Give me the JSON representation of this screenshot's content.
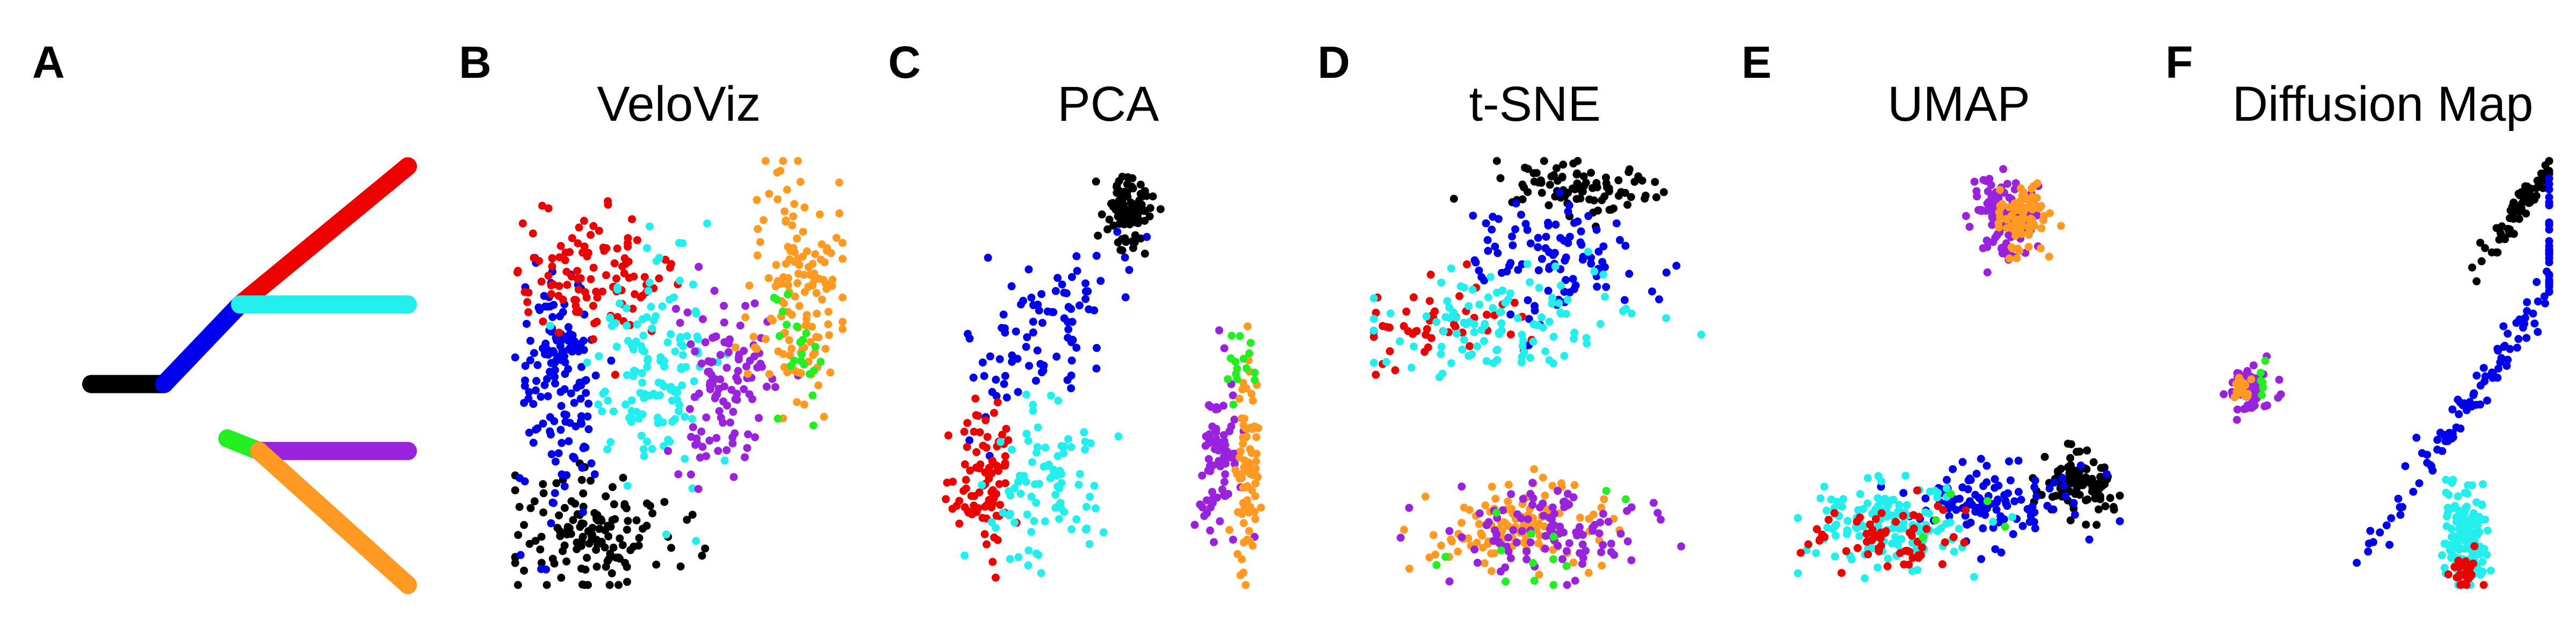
{
  "colors": {
    "black": "#000000",
    "blue": "#0000ee",
    "red": "#ee0000",
    "cyan": "#22eeee",
    "green": "#22ee22",
    "purple": "#9922dd",
    "orange": "#ff9922"
  },
  "chart_data": [
    {
      "type": "diagram",
      "letter": "A",
      "title": "",
      "segments": [
        {
          "color": "black",
          "from": [
            0,
            0.48
          ],
          "to": [
            0.23,
            0.48
          ]
        },
        {
          "color": "blue",
          "from": [
            0.23,
            0.48
          ],
          "to": [
            0.47,
            0.67
          ]
        },
        {
          "color": "red",
          "from": [
            0.47,
            0.67
          ],
          "to": [
            1.0,
            1.0
          ]
        },
        {
          "color": "cyan",
          "from": [
            0.47,
            0.67
          ],
          "to": [
            1.0,
            0.67
          ]
        },
        {
          "color": "green",
          "from": [
            0.43,
            0.35
          ],
          "to": [
            0.53,
            0.32
          ]
        },
        {
          "color": "purple",
          "from": [
            0.53,
            0.32
          ],
          "to": [
            1.0,
            0.32
          ]
        },
        {
          "color": "orange",
          "from": [
            0.53,
            0.32
          ],
          "to": [
            1.0,
            0.0
          ]
        }
      ]
    },
    {
      "type": "scatter",
      "letter": "B",
      "title": "VeloViz",
      "clusters": [
        {
          "color": "black",
          "cx": 0.24,
          "cy": 0.13,
          "sx": 0.12,
          "sy": 0.07,
          "n": 140
        },
        {
          "color": "blue",
          "cx": 0.13,
          "cy": 0.47,
          "sx": 0.06,
          "sy": 0.14,
          "n": 150
        },
        {
          "color": "red",
          "cx": 0.22,
          "cy": 0.73,
          "sx": 0.12,
          "sy": 0.07,
          "n": 110
        },
        {
          "color": "cyan",
          "cx": 0.42,
          "cy": 0.52,
          "sx": 0.09,
          "sy": 0.13,
          "n": 140
        },
        {
          "color": "purple",
          "cx": 0.64,
          "cy": 0.5,
          "sx": 0.07,
          "sy": 0.12,
          "n": 110
        },
        {
          "color": "orange",
          "cx": 0.86,
          "cy": 0.68,
          "sx": 0.07,
          "sy": 0.15,
          "n": 140
        },
        {
          "color": "green",
          "cx": 0.86,
          "cy": 0.53,
          "sx": 0.05,
          "sy": 0.09,
          "n": 22
        }
      ]
    },
    {
      "type": "scatter",
      "letter": "C",
      "title": "PCA",
      "clusters": [
        {
          "color": "black",
          "cx": 0.57,
          "cy": 0.88,
          "sx": 0.035,
          "sy": 0.05,
          "n": 90
        },
        {
          "color": "blue",
          "cx": 0.34,
          "cy": 0.62,
          "sx": 0.1,
          "sy": 0.1,
          "n": 90,
          "trend": "diag"
        },
        {
          "color": "red",
          "cx": 0.12,
          "cy": 0.25,
          "sx": 0.05,
          "sy": 0.08,
          "n": 90
        },
        {
          "color": "cyan",
          "cx": 0.3,
          "cy": 0.25,
          "sx": 0.09,
          "sy": 0.09,
          "n": 90
        },
        {
          "color": "purple",
          "cx": 0.86,
          "cy": 0.3,
          "sx": 0.04,
          "sy": 0.09,
          "n": 80
        },
        {
          "color": "orange",
          "cx": 0.94,
          "cy": 0.28,
          "sx": 0.02,
          "sy": 0.11,
          "n": 80
        },
        {
          "color": "green",
          "cx": 0.91,
          "cy": 0.52,
          "sx": 0.02,
          "sy": 0.05,
          "n": 15
        }
      ]
    },
    {
      "type": "scatter",
      "letter": "D",
      "title": "t-SNE",
      "clusters": [
        {
          "color": "black",
          "cx": 0.6,
          "cy": 0.94,
          "sx": 0.12,
          "sy": 0.03,
          "n": 90
        },
        {
          "color": "blue",
          "cx": 0.55,
          "cy": 0.76,
          "sx": 0.14,
          "sy": 0.07,
          "n": 100
        },
        {
          "color": "red",
          "cx": 0.22,
          "cy": 0.61,
          "sx": 0.12,
          "sy": 0.05,
          "n": 50
        },
        {
          "color": "cyan",
          "cx": 0.4,
          "cy": 0.62,
          "sx": 0.2,
          "sy": 0.05,
          "n": 110
        },
        {
          "color": "orange",
          "cx": 0.42,
          "cy": 0.13,
          "sx": 0.16,
          "sy": 0.05,
          "n": 110
        },
        {
          "color": "purple",
          "cx": 0.55,
          "cy": 0.13,
          "sx": 0.16,
          "sy": 0.05,
          "n": 110
        },
        {
          "color": "green",
          "cx": 0.45,
          "cy": 0.1,
          "sx": 0.16,
          "sy": 0.05,
          "n": 14
        }
      ]
    },
    {
      "type": "scatter",
      "letter": "E",
      "title": "UMAP",
      "clusters": [
        {
          "color": "purple",
          "cx": 0.64,
          "cy": 0.87,
          "sx": 0.05,
          "sy": 0.05,
          "n": 110
        },
        {
          "color": "orange",
          "cx": 0.7,
          "cy": 0.87,
          "sx": 0.05,
          "sy": 0.04,
          "n": 80
        },
        {
          "color": "black",
          "cx": 0.88,
          "cy": 0.24,
          "sx": 0.06,
          "sy": 0.04,
          "n": 90
        },
        {
          "color": "blue",
          "cx": 0.6,
          "cy": 0.2,
          "sx": 0.14,
          "sy": 0.05,
          "n": 110
        },
        {
          "color": "cyan",
          "cx": 0.28,
          "cy": 0.14,
          "sx": 0.12,
          "sy": 0.05,
          "n": 140
        },
        {
          "color": "red",
          "cx": 0.28,
          "cy": 0.11,
          "sx": 0.12,
          "sy": 0.04,
          "n": 60
        },
        {
          "color": "green",
          "cx": 0.5,
          "cy": 0.18,
          "sx": 0.08,
          "sy": 0.03,
          "n": 5
        }
      ]
    },
    {
      "type": "scatter",
      "letter": "F",
      "title": "Diffusion Map",
      "clusters": [
        {
          "color": "purple",
          "cx": 0.09,
          "cy": 0.46,
          "sx": 0.035,
          "sy": 0.03,
          "n": 60
        },
        {
          "color": "orange",
          "cx": 0.06,
          "cy": 0.47,
          "sx": 0.02,
          "sy": 0.015,
          "n": 20
        },
        {
          "color": "green",
          "cx": 0.14,
          "cy": 0.49,
          "sx": 0.02,
          "sy": 0.015,
          "n": 6
        },
        {
          "color": "black",
          "cx": 0.92,
          "cy": 0.9,
          "sx": 0.02,
          "sy": 0.06,
          "n": 70,
          "trend": "diag"
        },
        {
          "color": "blue",
          "cx": 0.82,
          "cy": 0.5,
          "sx": 0.025,
          "sy": 0.2,
          "n": 130,
          "trend": "diag"
        },
        {
          "color": "cyan",
          "cx": 0.74,
          "cy": 0.12,
          "sx": 0.035,
          "sy": 0.06,
          "n": 140
        },
        {
          "color": "red",
          "cx": 0.74,
          "cy": 0.03,
          "sx": 0.02,
          "sy": 0.02,
          "n": 30
        }
      ]
    }
  ]
}
